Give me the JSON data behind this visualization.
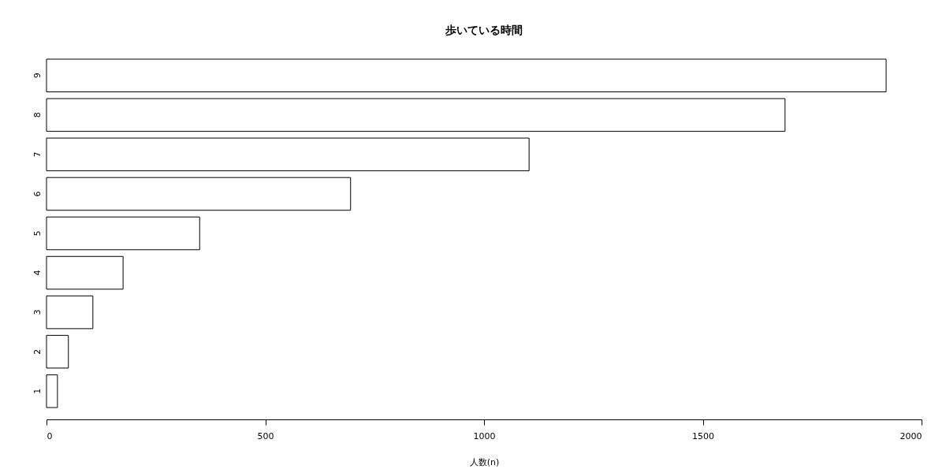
{
  "chart_data": {
    "type": "bar",
    "orientation": "horizontal",
    "title": "歩いている時間",
    "xlabel": "人数(n)",
    "categories": [
      "9",
      "8",
      "7",
      "6",
      "5",
      "4",
      "3",
      "2",
      "1"
    ],
    "values": [
      1919,
      1688,
      1103,
      695,
      350,
      175,
      106,
      50,
      25
    ],
    "color": "#ffffff",
    "xlim": [
      0,
      2000
    ],
    "xticks": [
      0,
      500,
      1000,
      1500,
      2000
    ],
    "grid": false
  }
}
